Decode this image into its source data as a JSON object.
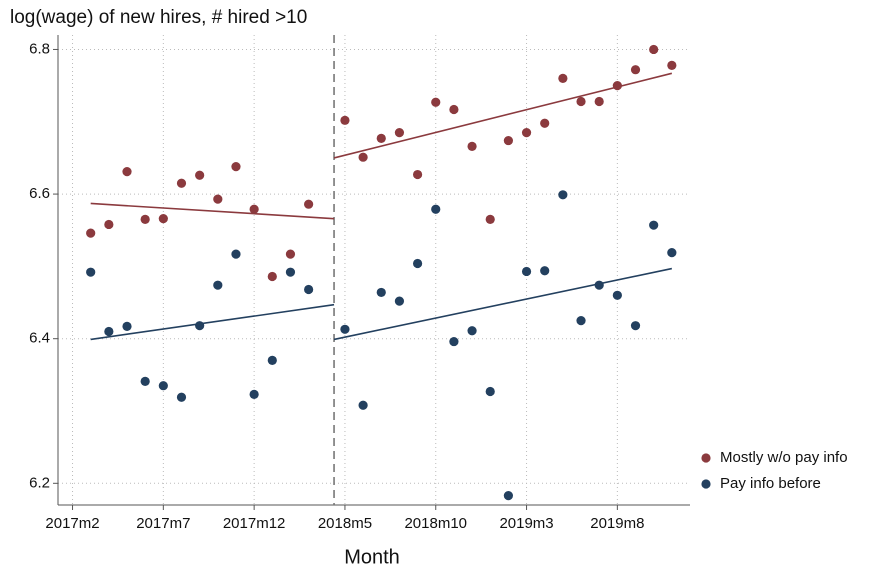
{
  "chart_data": {
    "type": "scatter",
    "title": "log(wage) of new hires, # hired >10",
    "x_label": "Month",
    "xlim": [
      684.2,
      719
    ],
    "ylim": [
      6.17,
      6.82
    ],
    "xticks": [
      {
        "value": 685,
        "label": "2017m2"
      },
      {
        "value": 690,
        "label": "2017m7"
      },
      {
        "value": 695,
        "label": "2017m12"
      },
      {
        "value": 700,
        "label": "2018m5"
      },
      {
        "value": 705,
        "label": "2018m10"
      },
      {
        "value": 710,
        "label": "2019m3"
      },
      {
        "value": 715,
        "label": "2019m8"
      }
    ],
    "yticks": [
      6.2,
      6.4,
      6.6,
      6.8
    ],
    "grid": true,
    "vline": 699.4,
    "legend": "right",
    "x": [
      686,
      687,
      688,
      689,
      690,
      691,
      692,
      693,
      694,
      695,
      696,
      697,
      698,
      700,
      701,
      702,
      703,
      704,
      705,
      706,
      707,
      708,
      709,
      710,
      711,
      712,
      713,
      714,
      715,
      716,
      717,
      718
    ],
    "series": [
      {
        "name": "Mostly w/o pay info",
        "color": "#8b3a3e",
        "values": [
          6.546,
          6.558,
          6.631,
          6.565,
          6.566,
          6.615,
          6.626,
          6.593,
          6.638,
          6.579,
          6.486,
          6.517,
          6.586,
          6.702,
          6.651,
          6.677,
          6.685,
          6.627,
          6.727,
          6.717,
          6.666,
          6.565,
          6.674,
          6.685,
          6.698,
          6.76,
          6.728,
          6.728,
          6.75,
          6.772,
          6.8,
          6.778
        ],
        "fits": [
          {
            "x": [
              686,
              699.4
            ],
            "values": [
              6.587,
              6.566
            ]
          },
          {
            "x": [
              699.4,
              718
            ],
            "values": [
              6.65,
              6.767
            ]
          }
        ]
      },
      {
        "name": "Pay info before",
        "color": "#23405f",
        "values": [
          6.492,
          6.41,
          6.417,
          6.341,
          6.335,
          6.319,
          6.418,
          6.474,
          6.517,
          6.323,
          6.37,
          6.492,
          6.468,
          6.413,
          6.308,
          6.464,
          6.452,
          6.504,
          6.579,
          6.396,
          6.411,
          6.327,
          6.183,
          6.493,
          6.494,
          6.599,
          6.425,
          6.474,
          6.46,
          6.418,
          6.557,
          6.519
        ],
        "fits": [
          {
            "x": [
              686,
              699.4
            ],
            "values": [
              6.399,
              6.447
            ]
          },
          {
            "x": [
              699.4,
              718
            ],
            "values": [
              6.399,
              6.497
            ]
          }
        ]
      }
    ]
  }
}
